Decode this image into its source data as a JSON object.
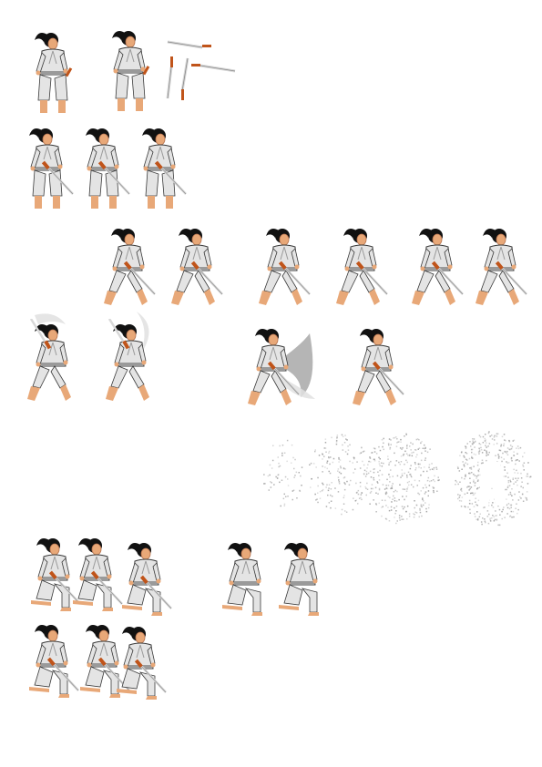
{
  "sheet": {
    "background": "#ffffff",
    "palette": {
      "hair": "#111111",
      "skin": "#e8a878",
      "skin_shade": "#b87450",
      "gi": "#e4e4e4",
      "gi_shade": "#9a9a9a",
      "outline": "#3a3a3a",
      "blade": "#d8d8d8",
      "blade_edge": "#8a8a8a",
      "hilt": "#c0541a",
      "slash": "#a8a8a8",
      "slash_light": "#e0e0e0",
      "particle": "#9c9c9c"
    },
    "icons": {
      "sprite": "samurai-sprite-icon",
      "katana": "katana-icon",
      "slash": "slash-effect-icon",
      "dissolve": "dissolve-effect-icon"
    }
  }
}
